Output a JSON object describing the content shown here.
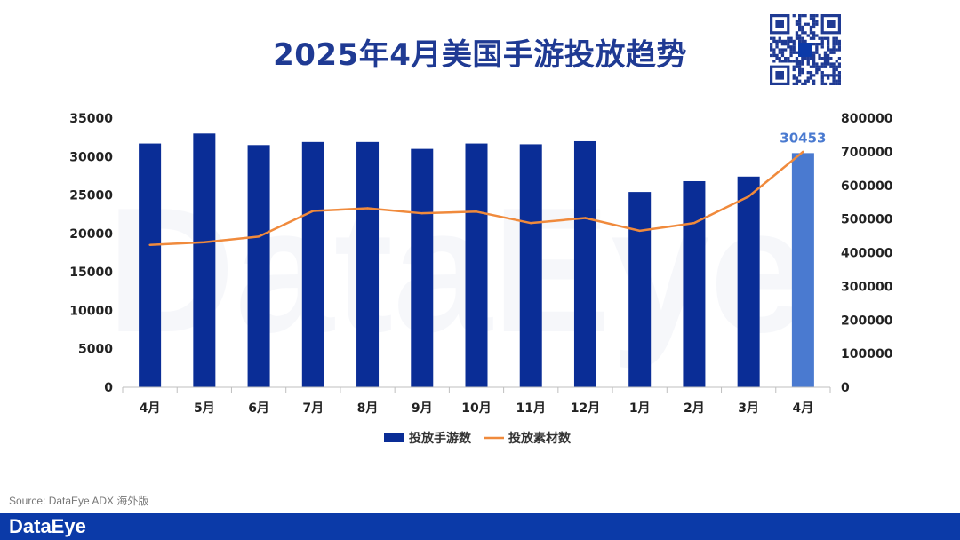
{
  "title": "2025年4月美国手游投放趋势",
  "source": "Source: DataEye ADX 海外版",
  "brand": "DataEye",
  "watermark": "DataEye",
  "colors": {
    "bar": "#0a2d96",
    "bar_highlight": "#4a7ad0",
    "line": "#f08a3c",
    "title": "#1f3a93",
    "footer": "#0b3aa8"
  },
  "chart_data": {
    "type": "bar",
    "categories": [
      "4月",
      "5月",
      "6月",
      "7月",
      "8月",
      "9月",
      "10月",
      "11月",
      "12月",
      "1月",
      "2月",
      "3月",
      "4月"
    ],
    "series": [
      {
        "name": "投放手游数",
        "type": "bar",
        "axis": "left",
        "values": [
          31700,
          33000,
          31500,
          31900,
          31900,
          31000,
          31700,
          31600,
          32000,
          25400,
          26800,
          27400,
          30453
        ]
      },
      {
        "name": "投放素材数",
        "type": "line",
        "axis": "right",
        "values": [
          423000,
          431000,
          448000,
          524000,
          532000,
          517000,
          522000,
          488000,
          503000,
          465000,
          488000,
          567000,
          700000
        ]
      }
    ],
    "highlight_index": 12,
    "data_labels": [
      {
        "index": 12,
        "text": "30453"
      }
    ],
    "y_left": {
      "min": 0,
      "max": 35000,
      "ticks": [
        "0",
        "5000",
        "10000",
        "15000",
        "20000",
        "25000",
        "30000",
        "35000"
      ]
    },
    "y_right": {
      "min": 0,
      "max": 800000,
      "ticks": [
        "0",
        "100000",
        "200000",
        "300000",
        "400000",
        "500000",
        "600000",
        "700000",
        "800000"
      ]
    },
    "legend": {
      "position": "bottom"
    },
    "grid": false
  }
}
